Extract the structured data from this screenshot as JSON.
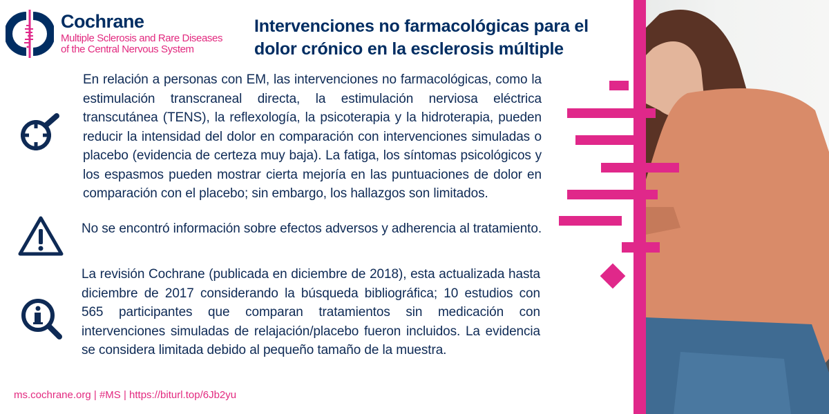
{
  "logo": {
    "brand": "Cochrane",
    "group_line1": "Multiple Sclerosis and Rare Diseases",
    "group_line2": "of the Central Nervous System"
  },
  "title": "Intervenciones no farmacológicas para el dolor crónico en la esclerosis múltiple",
  "sections": [
    {
      "icon": "magnifier-target-icon",
      "text": "En  relación a personas con EM, las intervenciones no farmacológicas, como la estimulación transcraneal directa, la estimulación nerviosa eléctrica transcutánea (TENS), la reflexología, la psicoterapia y la hidroterapia, pueden reducir la intensidad del dolor en comparación con intervenciones simuladas o placebo (evidencia de certeza muy baja). La fatiga, los síntomas psicológicos y los espasmos pueden mostrar cierta mejoría en las puntuaciones de dolor en comparación con el placebo; sin embargo, los hallazgos son limitados."
    },
    {
      "icon": "warning-icon",
      "text": "No se encontró  información sobre efectos adversos y adherencia al tratamiento."
    },
    {
      "icon": "info-magnifier-icon",
      "text": "La revisión Cochrane (publicada en diciembre de 2018), esta actualizada hasta diciembre de 2017  considerando la  búsqueda bibliográfica; 10 estudios con 565 participantes que comparan tratamientos sin medicación con intervenciones simuladas de relajación/placebo fueron incluidos. La evidencia se considera limitada debido al pequeño tamaño de la muestra."
    }
  ],
  "footer": "ms.cochrane.org |  #MS | https://biturl.top/6Jb2yu",
  "colors": {
    "navy": "#002d62",
    "pink": "#e0288a"
  }
}
